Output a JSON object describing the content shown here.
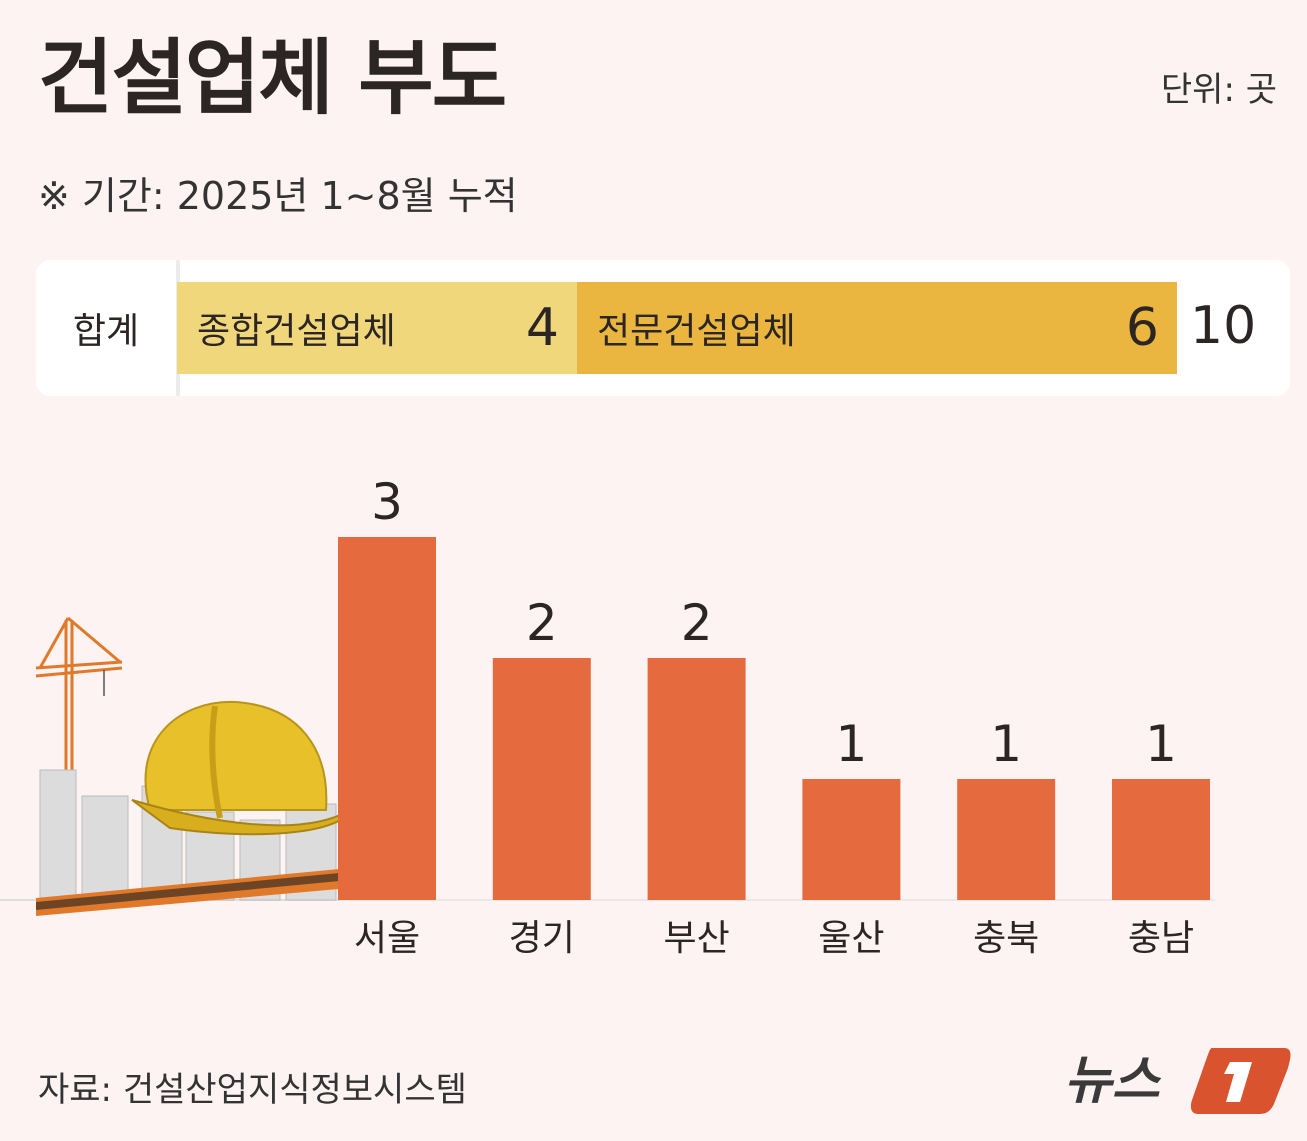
{
  "title": "건설업체 부도",
  "unit": "단위: 곳",
  "period": "※ 기간: 2025년 1~8월 누적",
  "summary": {
    "label": "합계",
    "segments": [
      {
        "name": "종합건설업체",
        "value": 4,
        "display": "4",
        "color": "#f0d77c"
      },
      {
        "name": "전문건설업체",
        "value": 6,
        "display": "6",
        "color": "#ebb640"
      }
    ],
    "total": "10"
  },
  "chart_data": {
    "type": "bar",
    "title": "건설업체 부도",
    "categories": [
      "서울",
      "경기",
      "부산",
      "울산",
      "충북",
      "충남"
    ],
    "values": [
      3,
      2,
      2,
      1,
      1,
      1
    ],
    "ylim": [
      0,
      3
    ],
    "xlabel": "",
    "ylabel": "곳",
    "bar_color": "#e56b3f",
    "grid": false
  },
  "source": "자료: 건설산업지식정보시스템",
  "logo": "뉴스1"
}
